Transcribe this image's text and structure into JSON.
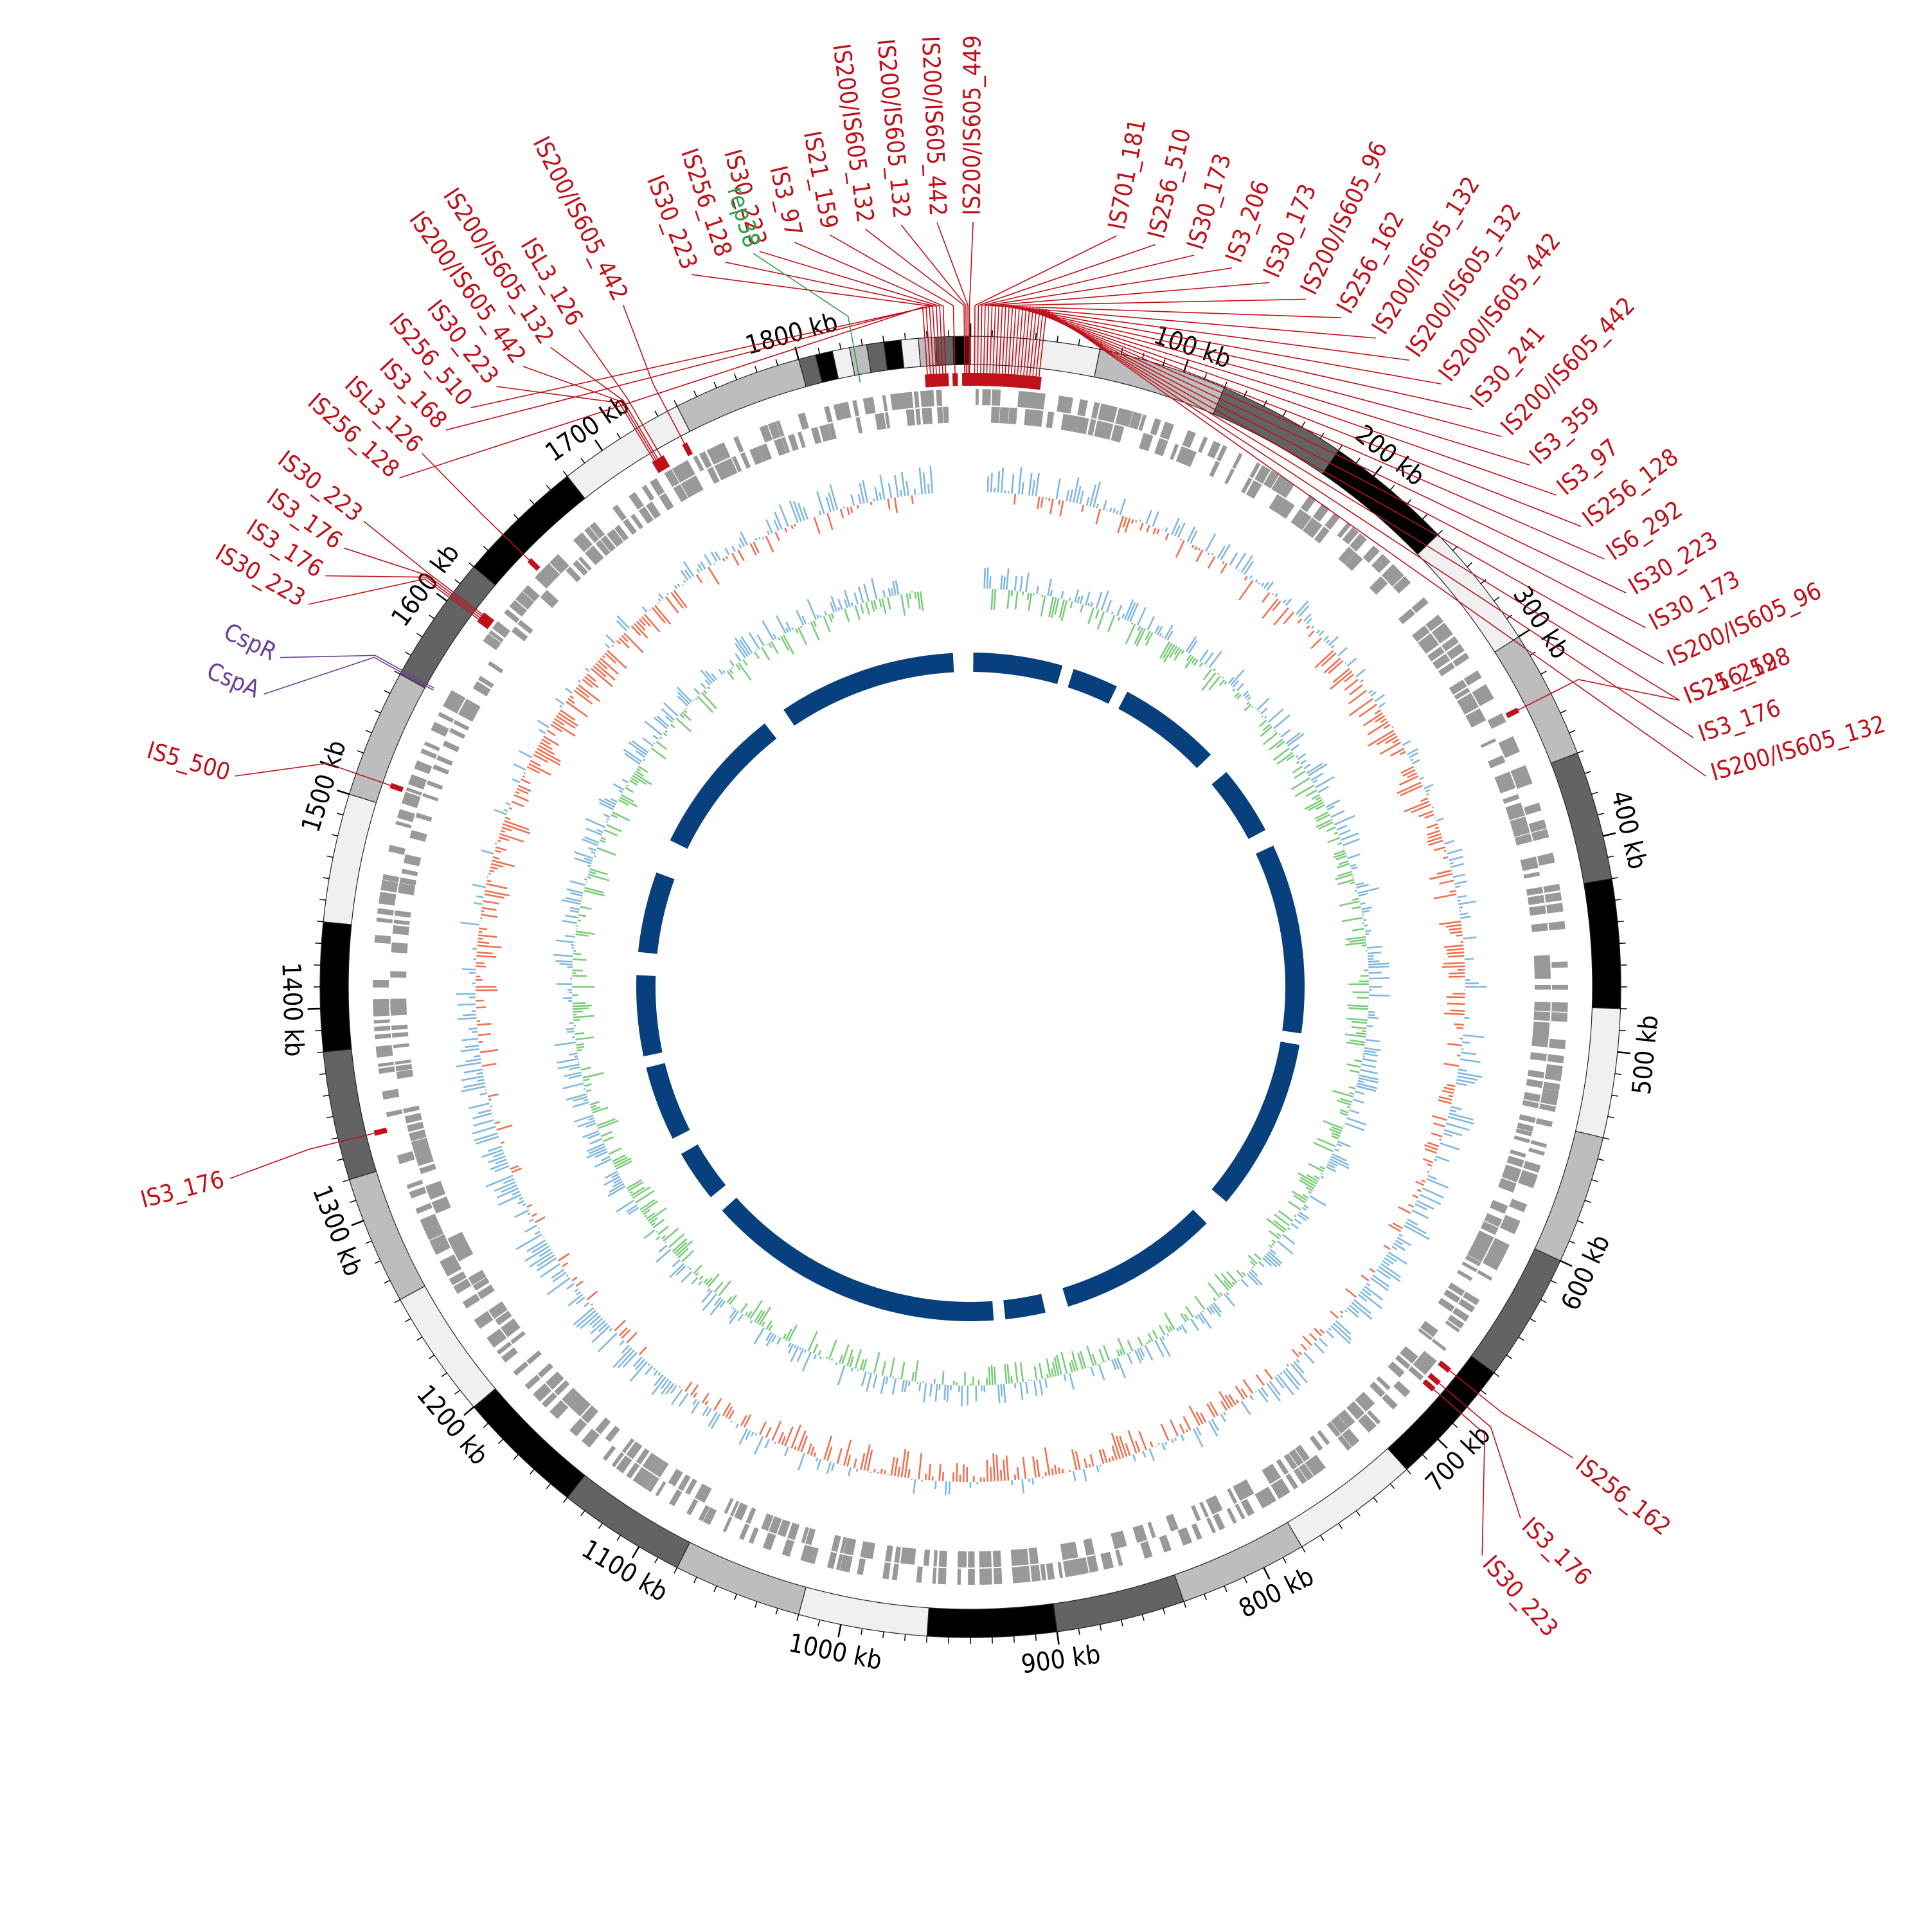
{
  "genome": {
    "length_kb": 1880,
    "tick_labels": [
      "100 kb",
      "200 kb",
      "300 kb",
      "400 kb",
      "500 kb",
      "600 kb",
      "700 kb",
      "800 kb",
      "900 kb",
      "1000 kb",
      "1100 kb",
      "1200 kb",
      "1300 kb",
      "1400 kb",
      "1500 kb",
      "1600 kb",
      "1700 kb",
      "1800 kb"
    ],
    "tick_positions_kb": [
      100,
      200,
      300,
      400,
      500,
      600,
      700,
      800,
      900,
      1000,
      1100,
      1200,
      1300,
      1400,
      1500,
      1600,
      1700,
      1800
    ]
  },
  "colors": {
    "is_element": "#c0101a",
    "rep": "#2e9e4a",
    "csp": "#6a3d9a",
    "gene": "#999999",
    "gc_skew_neg": "#f07050",
    "gc_skew_pos": "#80b8e0",
    "gc_content_low": "#7acc7a",
    "gc_content_high": "#80b8e0",
    "inner_ring": "#08407e",
    "band_shades": [
      "#f0f0f0",
      "#bdbdbd",
      "#636363",
      "#000000",
      "#f0f0f0",
      "#bdbdbd",
      "#636363",
      "#000000"
    ]
  },
  "features": {
    "is_elements": [
      {
        "label": "IS200/IS605_449",
        "pos_kb": 1879.6,
        "ang": -89.8
      },
      {
        "label": "IS200/IS605_442",
        "pos_kb": 1878.9,
        "ang": -92.5
      },
      {
        "label": "IS200/IS605_132",
        "pos_kb": 1878.0,
        "ang": -95.2
      },
      {
        "label": "IS200/IS605_132",
        "pos_kb": 1877.2,
        "ang": -97.9
      },
      {
        "label": "IS21_159",
        "pos_kb": 1872.5,
        "ang": -100.6
      },
      {
        "label": "IS3_97",
        "pos_kb": 1868.0,
        "ang": -103.3
      },
      {
        "label": "IS30_223",
        "pos_kb": 1866.5,
        "ang": -106.0
      },
      {
        "label": "IS256_128",
        "pos_kb": 1865.0,
        "ang": -108.7
      },
      {
        "label": "IS30_223",
        "pos_kb": 1863.4,
        "ang": -111.4
      },
      {
        "label": "IS200/IS605_442",
        "pos_kb": 1735.0,
        "ang": -117.0
      },
      {
        "label": "ISL3_126",
        "pos_kb": 1722.0,
        "ang": -120.8
      },
      {
        "label": "IS200/IS605_132",
        "pos_kb": 1720.0,
        "ang": -123.3
      },
      {
        "label": "IS200/IS605_442",
        "pos_kb": 1719.0,
        "ang": -125.8
      },
      {
        "label": "IS30_223",
        "pos_kb": 1718.0,
        "ang": -128.3
      },
      {
        "label": "IS256_510",
        "pos_kb": 1862.0,
        "ang": -130.8
      },
      {
        "label": "IS3_168",
        "pos_kb": 1860.5,
        "ang": -133.3
      },
      {
        "label": "ISL3_126",
        "pos_kb": 1640.0,
        "ang": -135.8
      },
      {
        "label": "IS256_128",
        "pos_kb": 1859.0,
        "ang": -138.3
      },
      {
        "label": "IS30_223",
        "pos_kb": 1605.0,
        "ang": -142.5
      },
      {
        "label": "IS3_176",
        "pos_kb": 1604.0,
        "ang": -145.0
      },
      {
        "label": "IS3_176",
        "pos_kb": 1603.0,
        "ang": -147.5
      },
      {
        "label": "IS30_223",
        "pos_kb": 1602.0,
        "ang": -150.0
      },
      {
        "label": "IS5_500",
        "pos_kb": 1510.0,
        "ang": -164.0
      },
      {
        "label": "IS3_176",
        "pos_kb": 1338.0,
        "ang": 165.5
      },
      {
        "label": "IS701_181",
        "pos_kb": 2.0,
        "ang": -79.0
      },
      {
        "label": "IS256_510",
        "pos_kb": 3.5,
        "ang": -76.0
      },
      {
        "label": "IS30_173",
        "pos_kb": 5.0,
        "ang": -73.0
      },
      {
        "label": "IS3_206",
        "pos_kb": 6.5,
        "ang": -70.0
      },
      {
        "label": "IS30_173",
        "pos_kb": 8.0,
        "ang": -67.0
      },
      {
        "label": "IS200/IS605_96",
        "pos_kb": 9.5,
        "ang": -64.0
      },
      {
        "label": "IS256_162",
        "pos_kb": 11.0,
        "ang": -61.0
      },
      {
        "label": "IS200/IS605_132",
        "pos_kb": 12.5,
        "ang": -58.0
      },
      {
        "label": "IS200/IS605_132",
        "pos_kb": 14.0,
        "ang": -55.0
      },
      {
        "label": "IS200/IS605_442",
        "pos_kb": 15.5,
        "ang": -52.0
      },
      {
        "label": "IS30_241",
        "pos_kb": 17.0,
        "ang": -49.0
      },
      {
        "label": "IS200/IS605_442",
        "pos_kb": 18.5,
        "ang": -46.0
      },
      {
        "label": "IS3_359",
        "pos_kb": 20.0,
        "ang": -43.0
      },
      {
        "label": "IS3_97",
        "pos_kb": 21.5,
        "ang": -40.0
      },
      {
        "label": "IS256_128",
        "pos_kb": 23.0,
        "ang": -37.0
      },
      {
        "label": "IS6_292",
        "pos_kb": 24.5,
        "ang": -34.0
      },
      {
        "label": "IS30_223",
        "pos_kb": 26.0,
        "ang": -31.0
      },
      {
        "label": "IS30_173",
        "pos_kb": 27.5,
        "ang": -28.0
      },
      {
        "label": "IS200/IS605_96",
        "pos_kb": 29.0,
        "ang": -25.0
      },
      {
        "label": "IS256_128",
        "pos_kb": 30.5,
        "ang": -22.0
      },
      {
        "label": "IS3_176",
        "pos_kb": 32.0,
        "ang": -19.0
      },
      {
        "label": "IS200/IS605_132",
        "pos_kb": 33.5,
        "ang": -16.0
      },
      {
        "label": "IS21_259",
        "pos_kb": 330.0,
        "ang": -22.0
      },
      {
        "label": "IS256_162",
        "pos_kb": 672.0,
        "ang": 38.0
      },
      {
        "label": "IS3_176",
        "pos_kb": 680.0,
        "ang": 44.0
      },
      {
        "label": "IS30_223",
        "pos_kb": 684.0,
        "ang": 48.0
      }
    ],
    "rep": [
      {
        "label": "rep38",
        "pos_kb": 1826.0,
        "ang": -106.5
      }
    ],
    "csp": [
      {
        "label": "CspR",
        "pos_kb": 1562.0,
        "ang": -154.5
      },
      {
        "label": "CspA",
        "pos_kb": 1561.0,
        "ang": -157.5
      }
    ]
  }
}
